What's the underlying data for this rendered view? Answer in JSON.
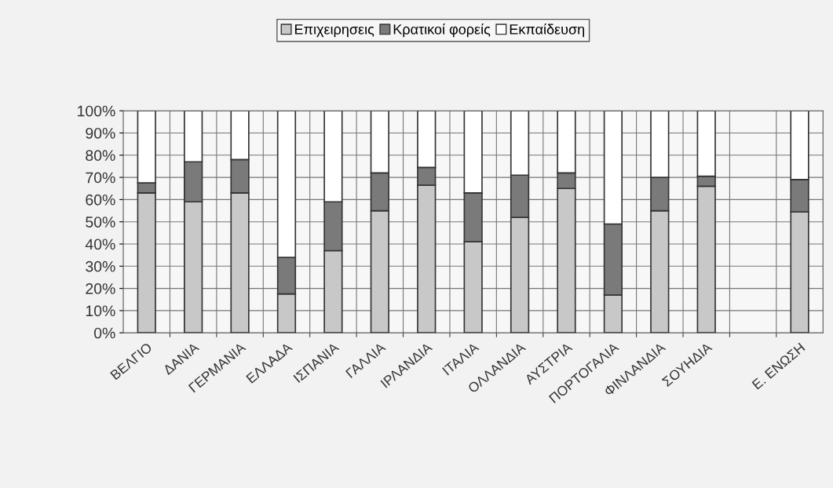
{
  "chart_data": {
    "type": "bar",
    "stacked": true,
    "categories": [
      "ΒΕΛΓΙΟ",
      "ΔΑΝΙΑ",
      "ΓΕΡΜΑΝΙΑ",
      "ΕΛΛΑΔΑ",
      "ΙΣΠΑΝΙΑ",
      "ΓΑΛΛΙΑ",
      "ΙΡΛΑΝΔΙΑ",
      "ΙΤΑΛΙΑ",
      "ΟΛΛΑΝΔΙΑ",
      "ΑΥΣΤΡΙΑ",
      "ΠΟΡΤΟΓΑΛΙΑ",
      "ΦΙΝΛΑΝΔΙΑ",
      "ΣΟΥΗΔΙΑ",
      null,
      "Ε. ΕΝΩΣΗ"
    ],
    "series": [
      {
        "name": "Επιχειρησεις",
        "color": "#c8c8c8",
        "values": [
          63,
          59,
          63,
          17.5,
          37,
          55,
          66.5,
          41,
          52,
          65,
          17,
          55,
          66,
          null,
          54.5
        ]
      },
      {
        "name": "Κρατικοί φορείς",
        "color": "#7a7a7a",
        "values": [
          4.5,
          18,
          15,
          16.5,
          22,
          17,
          8,
          22,
          19,
          7,
          32,
          15,
          4.5,
          null,
          14.5
        ]
      },
      {
        "name": "Εκπαίδευση",
        "color": "#ffffff",
        "values": [
          32.5,
          23,
          22,
          66,
          41,
          28,
          25.5,
          37,
          29,
          28,
          51,
          30,
          29.5,
          null,
          31
        ]
      }
    ],
    "ylim": [
      0,
      100
    ],
    "yticks": [
      {
        "value": 0,
        "label": "0%"
      },
      {
        "value": 10,
        "label": "10%"
      },
      {
        "value": 20,
        "label": "20%"
      },
      {
        "value": 30,
        "label": "30%"
      },
      {
        "value": 40,
        "label": "40%"
      },
      {
        "value": 50,
        "label": "50%"
      },
      {
        "value": 60,
        "label": "60%"
      },
      {
        "value": 70,
        "label": "70%"
      },
      {
        "value": 80,
        "label": "80%"
      },
      {
        "value": 90,
        "label": "90%"
      },
      {
        "value": 100,
        "label": "100%"
      }
    ],
    "grid": true,
    "legend": "top"
  }
}
